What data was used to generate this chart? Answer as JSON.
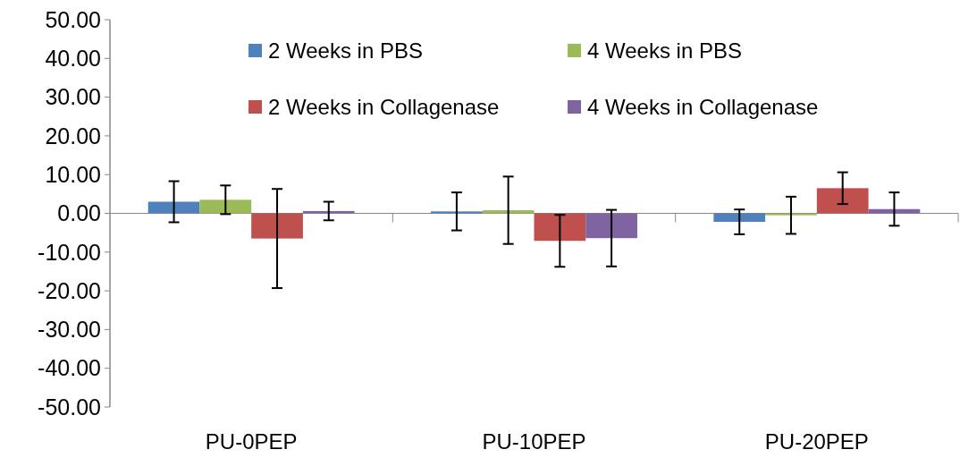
{
  "chart_data": {
    "type": "bar",
    "categories": [
      "PU-0PEP",
      "PU-10PEP",
      "PU-20PEP"
    ],
    "series": [
      {
        "name": "2 Weeks in PBS",
        "color": "#4f81bd",
        "values": [
          3.0,
          0.5,
          -2.2
        ],
        "errors": [
          5.3,
          4.9,
          3.2
        ]
      },
      {
        "name": "4 Weeks in PBS",
        "color": "#9bbb59",
        "values": [
          3.5,
          0.8,
          -0.5
        ],
        "errors": [
          3.7,
          8.7,
          4.8
        ]
      },
      {
        "name": "2 Weeks in Collagenase",
        "color": "#c0504d",
        "values": [
          -6.5,
          -7.1,
          6.5
        ],
        "errors": [
          12.8,
          6.7,
          4.1
        ]
      },
      {
        "name": "4 Weeks in Collagenase",
        "color": "#8064a2",
        "values": [
          0.6,
          -6.4,
          1.1
        ],
        "errors": [
          2.4,
          7.3,
          4.3
        ]
      }
    ],
    "ylim": [
      -50,
      50
    ],
    "yticks": [
      {
        "value": -50,
        "label": "-50.00"
      },
      {
        "value": -40,
        "label": "-40.00"
      },
      {
        "value": -30,
        "label": "-30.00"
      },
      {
        "value": -20,
        "label": "-20.00"
      },
      {
        "value": -10,
        "label": "-10.00"
      },
      {
        "value": 0,
        "label": "0.00"
      },
      {
        "value": 10,
        "label": "10.00"
      },
      {
        "value": 20,
        "label": "20.00"
      },
      {
        "value": 30,
        "label": "30.00"
      },
      {
        "value": 40,
        "label": "40.00"
      },
      {
        "value": 50,
        "label": "50.00"
      }
    ],
    "legend": "top"
  }
}
